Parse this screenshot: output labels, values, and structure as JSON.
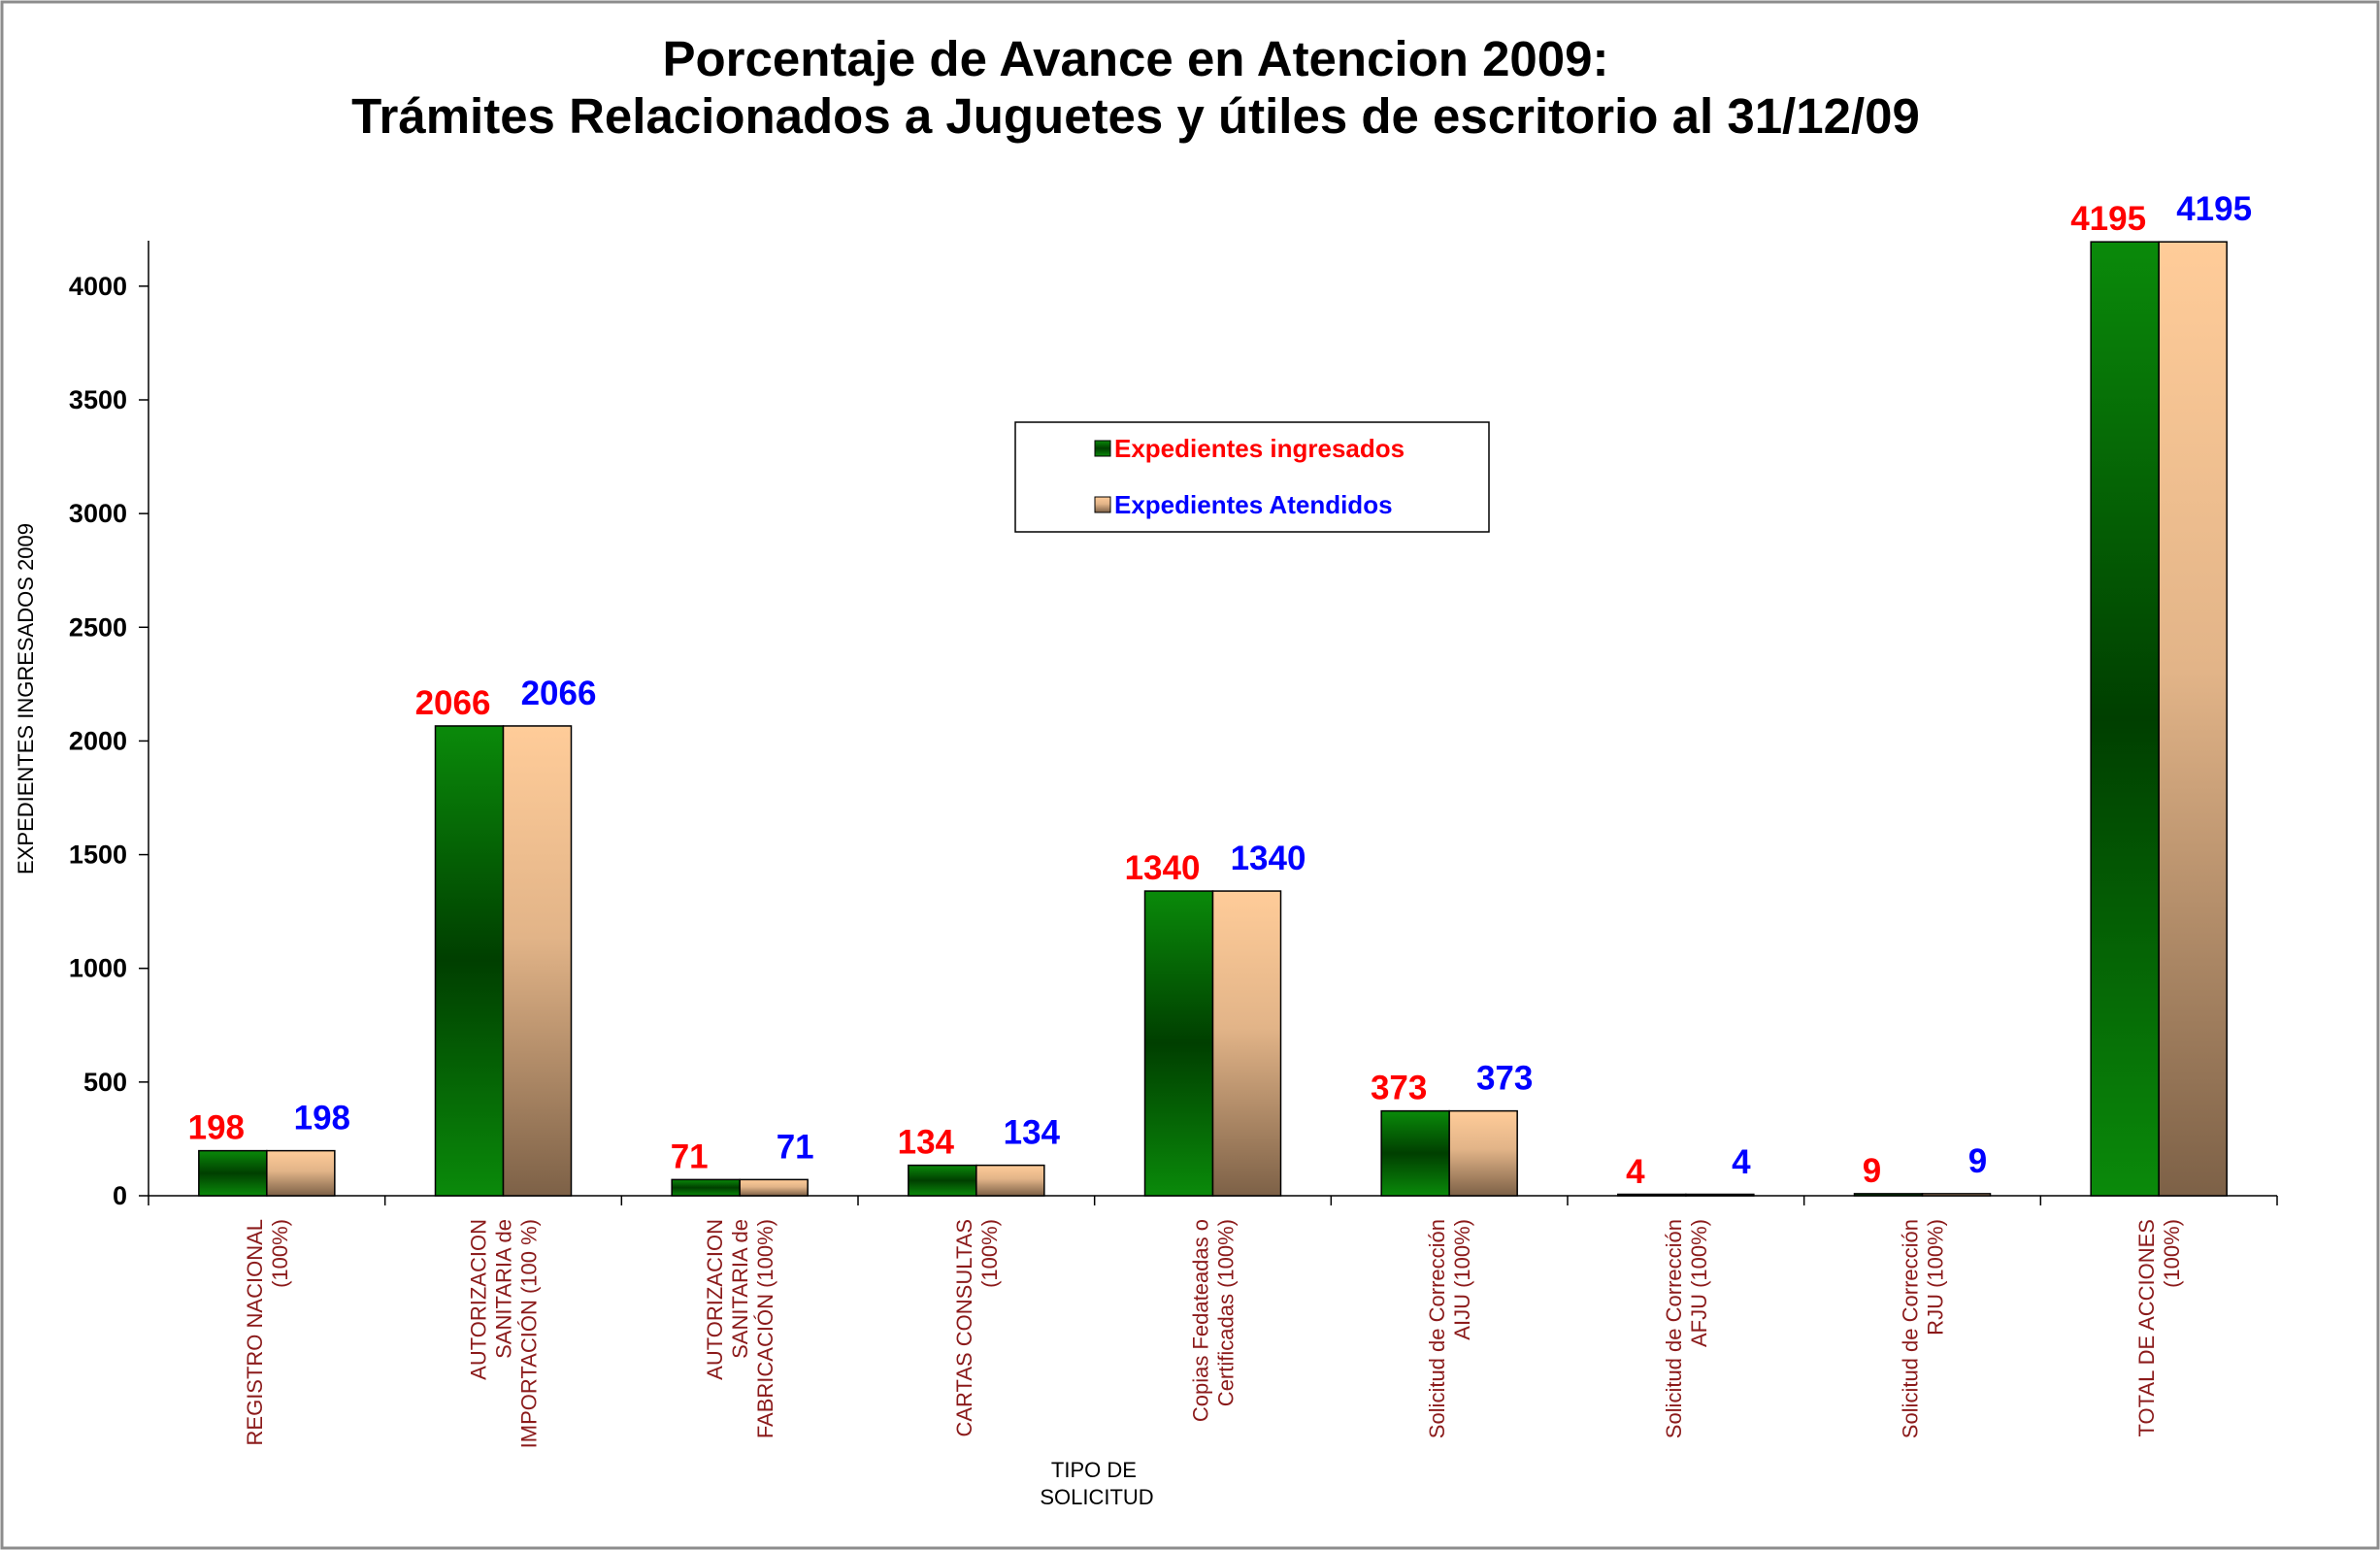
{
  "chart_data": {
    "type": "bar",
    "title": "Porcentaje de Avance en Atencion 2009:",
    "subtitle": "Trámites Relacionados a Juguetes y útiles de escritorio al 31/12/09",
    "ylabel": "EXPEDIENTES INGRESADOS 2009",
    "xlabel": [
      "TIPO DE",
      "SOLICITUD"
    ],
    "ylim": [
      0,
      4200
    ],
    "yticks": [
      0,
      500,
      1000,
      1500,
      2000,
      2500,
      3000,
      3500,
      4000
    ],
    "grid": false,
    "legend_position": "top-center",
    "categories": [
      [
        "REGISTRO NACIONAL",
        "(100%)"
      ],
      [
        "AUTORIZACION",
        "SANITARIA de",
        "IMPORTACIÓN (100 %)"
      ],
      [
        "AUTORIZACION",
        "SANITARIA de",
        "FABRICACIÓN (100%)"
      ],
      [
        "CARTAS CONSULTAS",
        "(100%)"
      ],
      [
        "Copias Fedateadas o",
        "Certificadas (100%)"
      ],
      [
        "Solicitud de Corrección",
        "AIJU (100%)"
      ],
      [
        "Solicitud de Corrección",
        "AFJU (100%)"
      ],
      [
        "Solicitud de Corrección",
        "RJU (100%)"
      ],
      [
        "TOTAL DE ACCIONES",
        "(100%)"
      ]
    ],
    "series": [
      {
        "name": "Expedientes ingresados",
        "values": [
          198,
          2066,
          71,
          134,
          1340,
          373,
          4,
          9,
          4195
        ],
        "color": "#007a00",
        "label_color": "#ff0000"
      },
      {
        "name": "Expedientes Atendidos",
        "values": [
          198,
          2066,
          71,
          134,
          1340,
          373,
          4,
          9,
          4195
        ],
        "color": "#ffcc99",
        "label_color": "#0000ff"
      }
    ]
  }
}
